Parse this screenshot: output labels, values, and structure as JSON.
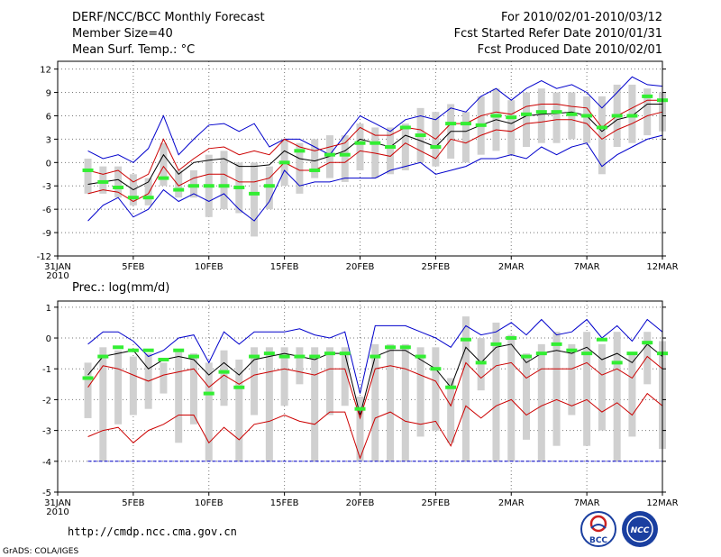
{
  "header": {
    "title": "DERF/NCC/BCC Monthly Forecast",
    "member_size": "Member Size=40",
    "variable": "Mean Surf. Temp.: °C",
    "period": "For 2010/02/01-2010/03/12",
    "started": "Fcst Started Refer Date 2010/01/31",
    "produced": "Fcst Produced Date 2010/02/01"
  },
  "footer": {
    "url": "http://cmdp.ncc.cma.gov.cn",
    "credit": "GrADS: COLA/IGES",
    "logo_left": "BCC",
    "logo_right": "NCC"
  },
  "colors": {
    "envelope": "#0000cc",
    "spread": "#cc0000",
    "mean": "#000000",
    "box": "#d0d0d0",
    "marker": "#33ee33",
    "grid": "#777777"
  },
  "x_axis": {
    "ticks": [
      "31JAN",
      "5FEB",
      "10FEB",
      "15FEB",
      "20FEB",
      "25FEB",
      "2MAR",
      "7MAR",
      "12MAR"
    ],
    "tick_days": [
      0,
      5,
      10,
      15,
      20,
      25,
      30,
      35,
      40
    ],
    "year": "2010",
    "range": [
      0,
      40
    ]
  },
  "chart_data": [
    {
      "type": "line",
      "panel": "temperature",
      "title": "Mean Surf. Temp.: °C",
      "ylabel": "°C",
      "ylim": [
        -12,
        13
      ],
      "yticks": [
        -12,
        -9,
        -6,
        -3,
        0,
        3,
        6,
        9,
        12
      ],
      "x": [
        2,
        3,
        4,
        5,
        6,
        7,
        8,
        9,
        10,
        11,
        12,
        13,
        14,
        15,
        16,
        17,
        18,
        19,
        20,
        21,
        22,
        23,
        24,
        25,
        26,
        27,
        28,
        29,
        30,
        31,
        32,
        33,
        34,
        35,
        36,
        37,
        38,
        39,
        40
      ],
      "series": [
        {
          "name": "max",
          "role": "envelope",
          "values": [
            1.5,
            0.5,
            1,
            0,
            1.8,
            6,
            1,
            3,
            4.8,
            5,
            4,
            5,
            2,
            3,
            3,
            2,
            1,
            3.5,
            6,
            5,
            4,
            5.5,
            6,
            5.5,
            7,
            6.5,
            8.5,
            9.5,
            8,
            9.5,
            10.5,
            9.5,
            10,
            9,
            7,
            9,
            11,
            10,
            9.8
          ]
        },
        {
          "name": "upper",
          "role": "spread",
          "values": [
            -1,
            -1.5,
            -1,
            -2.5,
            -1.5,
            3,
            -1,
            0.5,
            1.8,
            2,
            1,
            1.5,
            1,
            3,
            2,
            1.5,
            2,
            2.5,
            4.5,
            3.5,
            3.5,
            4.5,
            4.2,
            3,
            5,
            5,
            6,
            6.5,
            6.2,
            7.2,
            7.5,
            7.5,
            7.2,
            7,
            4.5,
            6,
            7,
            8,
            8
          ]
        },
        {
          "name": "mean",
          "role": "mean",
          "values": [
            -2.8,
            -2.5,
            -2.2,
            -3.5,
            -2.5,
            1,
            -1.5,
            0,
            0.3,
            0.5,
            -0.5,
            -0.5,
            -0.3,
            1.5,
            0.5,
            0.2,
            0.8,
            1.5,
            3,
            2.5,
            2,
            3.5,
            2.8,
            2,
            4,
            4,
            4.8,
            5.5,
            5,
            6,
            6.2,
            6.3,
            6.5,
            6,
            4,
            5.5,
            6,
            7.5,
            7.5
          ]
        },
        {
          "name": "lower",
          "role": "spread",
          "values": [
            -4,
            -3.5,
            -3.8,
            -5,
            -4,
            -0.5,
            -3,
            -2,
            -1.5,
            -1.5,
            -2.5,
            -2.5,
            -2,
            0,
            -1,
            -1,
            0,
            0,
            1.5,
            1.2,
            0.8,
            2.5,
            1.5,
            0.5,
            3,
            2.5,
            3.5,
            4.2,
            4,
            5,
            5.2,
            5.5,
            5.5,
            5,
            3,
            4.2,
            5,
            6,
            6.5
          ]
        },
        {
          "name": "min",
          "role": "envelope",
          "values": [
            -7.5,
            -5.5,
            -4.5,
            -7,
            -6,
            -3.5,
            -5,
            -4,
            -5,
            -4,
            -6,
            -7.5,
            -5,
            -1,
            -3,
            -2.5,
            -2.5,
            -2,
            -2,
            -2,
            -1,
            -0.5,
            0,
            -1.5,
            -1,
            -0.5,
            0.5,
            0.5,
            1,
            0.5,
            2,
            1,
            2,
            2.5,
            -0.5,
            1,
            2,
            3,
            3.5
          ]
        }
      ],
      "boxes": {
        "x": [
          2,
          3,
          4,
          5,
          6,
          7,
          8,
          9,
          10,
          11,
          12,
          13,
          14,
          15,
          16,
          17,
          18,
          19,
          20,
          21,
          22,
          23,
          24,
          25,
          26,
          27,
          28,
          29,
          30,
          31,
          32,
          33,
          34,
          35,
          36,
          37,
          38,
          39,
          40
        ],
        "low": [
          -4,
          -4,
          -4.5,
          -5.5,
          -5.5,
          -3,
          -4.5,
          -4.5,
          -7,
          -6,
          -6.5,
          -9.5,
          -6,
          -3,
          -4,
          -2,
          -2,
          -2.5,
          -1,
          -2,
          -1.5,
          -1,
          0,
          -0.5,
          0.5,
          0,
          1,
          1.5,
          1,
          2,
          2.5,
          2.5,
          3,
          2.5,
          -1.5,
          2,
          2.5,
          3.5,
          4
        ],
        "high": [
          0.5,
          -0.5,
          -0.5,
          -1.5,
          -2,
          2.5,
          -1,
          -1,
          1,
          1.5,
          0,
          0,
          -0.5,
          3,
          2.5,
          3,
          3.5,
          3.5,
          5,
          4.5,
          4.5,
          5,
          7,
          6.5,
          7.5,
          6.5,
          8.5,
          9.5,
          8,
          9,
          9.5,
          9,
          9,
          8.5,
          8.5,
          10,
          10,
          9.5,
          9
        ]
      },
      "markers": {
        "x": [
          2,
          3,
          4,
          5,
          6,
          7,
          8,
          9,
          10,
          11,
          12,
          13,
          14,
          15,
          16,
          17,
          18,
          19,
          20,
          21,
          22,
          23,
          24,
          25,
          26,
          27,
          28,
          29,
          30,
          31,
          32,
          33,
          34,
          35,
          36,
          37,
          38,
          39,
          40
        ],
        "values": [
          -1,
          -2.5,
          -3.2,
          -4.5,
          -4.5,
          -2,
          -3.5,
          -3,
          -3,
          -3,
          -3.2,
          -4,
          -3,
          0,
          1.5,
          -1,
          1,
          1,
          2.5,
          2.5,
          2,
          4.5,
          3.5,
          2,
          5,
          5,
          4.8,
          6,
          5.8,
          6.2,
          6.5,
          6.5,
          6.2,
          6,
          4.5,
          6,
          6,
          8.5,
          8
        ]
      }
    },
    {
      "type": "line",
      "panel": "precipitation",
      "title": "Prec.: log(mm/d)",
      "ylabel": "log(mm/d)",
      "ylim": [
        -5,
        1.2
      ],
      "yticks": [
        -5,
        -4,
        -3,
        -2,
        -1,
        0,
        1
      ],
      "x": [
        2,
        3,
        4,
        5,
        6,
        7,
        8,
        9,
        10,
        11,
        12,
        13,
        14,
        15,
        16,
        17,
        18,
        19,
        20,
        21,
        22,
        23,
        24,
        25,
        26,
        27,
        28,
        29,
        30,
        31,
        32,
        33,
        34,
        35,
        36,
        37,
        38,
        39,
        40
      ],
      "series": [
        {
          "name": "max",
          "role": "envelope",
          "values": [
            -0.2,
            0.2,
            0.2,
            -0.1,
            -0.6,
            -0.4,
            0,
            0.1,
            -0.8,
            0.2,
            -0.2,
            0.2,
            0.2,
            0.2,
            0.3,
            0.1,
            0,
            0.2,
            -1.8,
            0.4,
            0.4,
            0.4,
            0.2,
            0,
            -0.3,
            0.4,
            0.1,
            0.2,
            0.5,
            0.1,
            0.6,
            0.1,
            0.2,
            0.6,
            0,
            0.4,
            -0.1,
            0.6,
            0.2
          ]
        },
        {
          "name": "mean",
          "role": "mean",
          "values": [
            -1.2,
            -0.6,
            -0.5,
            -0.4,
            -1,
            -0.7,
            -0.6,
            -0.7,
            -1.2,
            -0.8,
            -1.2,
            -0.7,
            -0.6,
            -0.5,
            -0.6,
            -0.7,
            -0.5,
            -0.5,
            -2.5,
            -0.6,
            -0.4,
            -0.4,
            -0.7,
            -1.0,
            -1.6,
            -0.3,
            -0.8,
            -0.3,
            -0.2,
            -0.8,
            -0.5,
            -0.4,
            -0.5,
            -0.3,
            -0.7,
            -0.5,
            -0.8,
            -0.2,
            -0.6
          ]
        },
        {
          "name": "p75",
          "role": "spread",
          "values": [
            -1.6,
            -0.9,
            -1.0,
            -1.2,
            -1.4,
            -1.2,
            -1.1,
            -1,
            -1.6,
            -1.2,
            -1.5,
            -1.2,
            -1.1,
            -1,
            -1.1,
            -1.2,
            -1.0,
            -1.0,
            -2.6,
            -1.0,
            -0.9,
            -1.0,
            -1.2,
            -1.4,
            -2.2,
            -0.8,
            -1.3,
            -0.9,
            -0.8,
            -1.3,
            -1.0,
            -1.0,
            -1.0,
            -0.8,
            -1.2,
            -1.0,
            -1.3,
            -0.6,
            -1.0
          ]
        },
        {
          "name": "p25",
          "role": "spread",
          "values": [
            -3.2,
            -3,
            -2.9,
            -3.4,
            -3,
            -2.8,
            -2.5,
            -2.5,
            -3.4,
            -2.9,
            -3.3,
            -2.8,
            -2.7,
            -2.5,
            -2.7,
            -2.8,
            -2.4,
            -2.4,
            -3.9,
            -2.6,
            -2.4,
            -2.7,
            -2.8,
            -2.7,
            -3.5,
            -2.2,
            -2.6,
            -2.2,
            -2.0,
            -2.5,
            -2.2,
            -2.0,
            -2.2,
            -2.0,
            -2.4,
            -2.1,
            -2.5,
            -1.8,
            -2.2
          ]
        },
        {
          "name": "min",
          "role": "envelope",
          "values": [
            -4,
            -4,
            -4,
            -4,
            -4,
            -4,
            -4,
            -4,
            -4,
            -4,
            -4,
            -4,
            -4,
            -4,
            -4,
            -4,
            -4,
            -4,
            -4,
            -4,
            -4,
            -4,
            -4,
            -4,
            -4,
            -4,
            -4,
            -4,
            -4,
            -4,
            -4,
            -4,
            -4,
            -4,
            -4,
            -4,
            -4,
            -4,
            -4
          ]
        }
      ],
      "boxes": {
        "x": [
          2,
          3,
          4,
          5,
          6,
          7,
          8,
          9,
          10,
          11,
          12,
          13,
          14,
          15,
          16,
          17,
          18,
          19,
          20,
          21,
          22,
          23,
          24,
          25,
          26,
          27,
          28,
          29,
          30,
          31,
          32,
          33,
          34,
          35,
          36,
          37,
          38,
          39,
          40
        ],
        "low": [
          -2.6,
          -4,
          -2.8,
          -2.5,
          -2.3,
          -1.8,
          -3.4,
          -2.8,
          -4,
          -2.2,
          -4,
          -2.5,
          -4,
          -2.2,
          -1.5,
          -4,
          -2.5,
          -2.2,
          -4,
          -4,
          -4,
          -4,
          -3.2,
          -3,
          -3.4,
          -4,
          -1.7,
          -4,
          -4,
          -3.3,
          -4,
          -3.5,
          -2.5,
          -3.5,
          -3,
          -4,
          -3.2,
          -1.5,
          -3.6
        ],
        "high": [
          -0.8,
          -0.3,
          -0.4,
          -0.6,
          -0.5,
          -0.8,
          -0.4,
          -0.5,
          -0.8,
          -0.4,
          -0.7,
          -0.3,
          -0.3,
          -0.3,
          -0.3,
          -0.3,
          -0.3,
          -0.3,
          -1.9,
          -0.2,
          -0.2,
          -0.2,
          -0.3,
          -0.3,
          -1.3,
          0.7,
          0,
          0.5,
          0.1,
          -0.5,
          -0.2,
          0.2,
          -0.2,
          0.2,
          -0.2,
          0.2,
          -0.5,
          0.2,
          -0.1
        ]
      },
      "markers": {
        "x": [
          2,
          3,
          4,
          5,
          6,
          7,
          8,
          9,
          10,
          11,
          12,
          13,
          14,
          15,
          16,
          17,
          18,
          19,
          20,
          21,
          22,
          23,
          24,
          25,
          26,
          27,
          28,
          29,
          30,
          31,
          32,
          33,
          34,
          35,
          36,
          37,
          38,
          39,
          40
        ],
        "values": [
          -1.3,
          -0.6,
          -0.3,
          -0.4,
          -0.4,
          -0.7,
          -0.4,
          -0.6,
          -1.8,
          -1.1,
          -1.6,
          -0.6,
          -0.5,
          -0.6,
          -0.6,
          -0.6,
          -0.5,
          -0.5,
          -2.3,
          -0.6,
          -0.3,
          -0.3,
          -0.6,
          -1.0,
          -1.6,
          -0.05,
          -0.8,
          -0.2,
          0,
          -0.6,
          -0.5,
          -0.2,
          -0.4,
          -0.5,
          -0.05,
          -0.8,
          -0.5,
          -0.15,
          -0.5
        ]
      }
    }
  ]
}
